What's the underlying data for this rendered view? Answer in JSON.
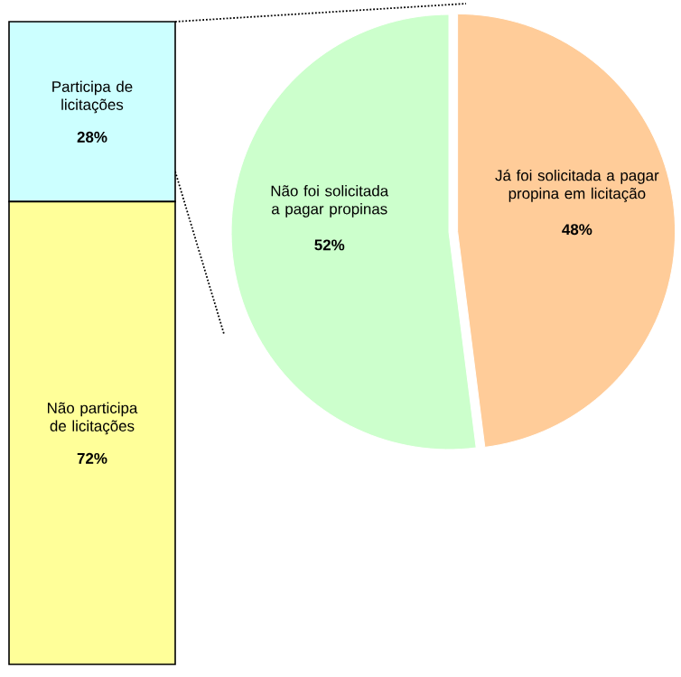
{
  "chart_data": [
    {
      "type": "bar",
      "stacked": true,
      "categories": [
        null
      ],
      "series": [
        {
          "name": "Não participa de licitações",
          "color": "#ffff99",
          "values": [
            72
          ],
          "value_labels": [
            "72%"
          ]
        },
        {
          "name": "Participa de licitações",
          "color": "#ccffff",
          "values": [
            28
          ],
          "value_labels": [
            "28%"
          ]
        }
      ]
    },
    {
      "type": "pie",
      "categories": [
        "Já foi solicitada a pagar propina em licitação",
        "Não foi solicitada a pagar propinas"
      ],
      "values": [
        48,
        52
      ],
      "colors": [
        "#ffcc99",
        "#ccffcc"
      ],
      "value_labels": [
        "48%",
        "52%"
      ]
    }
  ]
}
